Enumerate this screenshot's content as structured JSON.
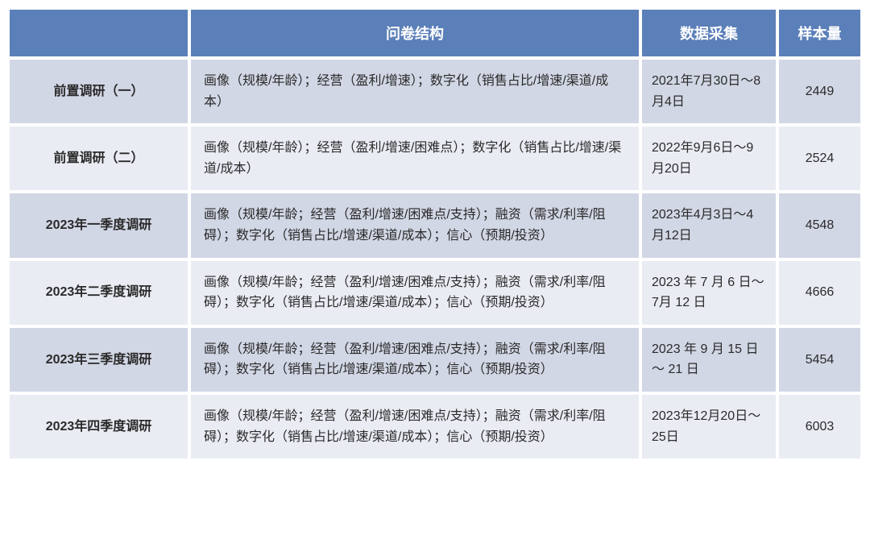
{
  "table": {
    "columns": [
      "",
      "问卷结构",
      "数据采集",
      "样本量"
    ],
    "header_bg": "#5b7fb9",
    "header_fg": "#ffffff",
    "row_odd_bg": "#d2d7e5",
    "row_even_bg": "#e9ecf3",
    "name_fg": "#3a5497",
    "border_color": "#ffffff",
    "rows": [
      {
        "name": "前置调研（一）",
        "structure": "画像（规模/年龄）；经营（盈利/增速）；数字化（销售占比/增速/渠道/成本）",
        "date": "2021年7月30日～8月4日",
        "sample": "2449"
      },
      {
        "name": "前置调研（二）",
        "structure": "画像（规模/年龄）；经营（盈利/增速/困难点）；数字化（销售占比/增速/渠道/成本）",
        "date": "2022年9月6日～9月20日",
        "sample": "2524"
      },
      {
        "name": "2023年一季度调研",
        "structure": "画像（规模/年龄；经营（盈利/增速/困难点/支持）；融资（需求/利率/阻碍）；数字化（销售占比/增速/渠道/成本）；信心（预期/投资）",
        "date": "2023年4月3日～4月12日",
        "sample": "4548"
      },
      {
        "name": "2023年二季度调研",
        "structure": "画像（规模/年龄；经营（盈利/增速/困难点/支持）；融资（需求/利率/阻碍）；数字化（销售占比/增速/渠道/成本）；信心（预期/投资）",
        "date": "2023 年 7 月 6 日～7月 12 日",
        "sample": "4666"
      },
      {
        "name": "2023年三季度调研",
        "structure": "画像（规模/年龄；经营（盈利/增速/困难点/支持）；融资（需求/利率/阻碍）；数字化（销售占比/增速/渠道/成本）；信心（预期/投资）",
        "date": "2023 年 9 月 15 日～ 21 日",
        "sample": "5454"
      },
      {
        "name": "2023年四季度调研",
        "structure": "画像（规模/年龄；经营（盈利/增速/困难点/支持）；融资（需求/利率/阻碍）；数字化（销售占比/增速/渠道/成本）；信心（预期/投资）",
        "date": "2023年12月20日～25日",
        "sample": "6003"
      }
    ]
  }
}
